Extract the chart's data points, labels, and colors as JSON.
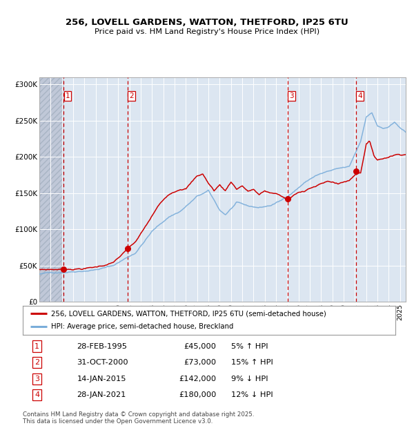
{
  "title": "256, LOVELL GARDENS, WATTON, THETFORD, IP25 6TU",
  "subtitle": "Price paid vs. HM Land Registry's House Price Index (HPI)",
  "legend_property": "256, LOVELL GARDENS, WATTON, THETFORD, IP25 6TU (semi-detached house)",
  "legend_hpi": "HPI: Average price, semi-detached house, Breckland",
  "footer": "Contains HM Land Registry data © Crown copyright and database right 2025.\nThis data is licensed under the Open Government Licence v3.0.",
  "transactions": [
    {
      "num": 1,
      "date": "28-FEB-1995",
      "price": 45000,
      "pct": "5%",
      "dir": "↑",
      "x_year": 1995.16
    },
    {
      "num": 2,
      "date": "31-OCT-2000",
      "price": 73000,
      "pct": "15%",
      "dir": "↑",
      "x_year": 2000.83
    },
    {
      "num": 3,
      "date": "14-JAN-2015",
      "price": 142000,
      "pct": "9%",
      "dir": "↓",
      "x_year": 2015.04
    },
    {
      "num": 4,
      "date": "28-JAN-2021",
      "price": 180000,
      "pct": "12%",
      "dir": "↓",
      "x_year": 2021.08
    }
  ],
  "hatch_xmin": 1993.0,
  "hatch_xmax": 1995.16,
  "bg_color": "#dce6f1",
  "plot_bg": "#ffffff",
  "hatch_color": "#c0c8d8",
  "red_line_color": "#cc0000",
  "blue_line_color": "#7aadda",
  "dashed_line_color": "#cc0000",
  "ylim": [
    0,
    310000
  ],
  "xlim": [
    1993.0,
    2025.5
  ],
  "yticks": [
    0,
    50000,
    100000,
    150000,
    200000,
    250000,
    300000
  ],
  "ytick_labels": [
    "£0",
    "£50K",
    "£100K",
    "£150K",
    "£200K",
    "£250K",
    "£300K"
  ]
}
